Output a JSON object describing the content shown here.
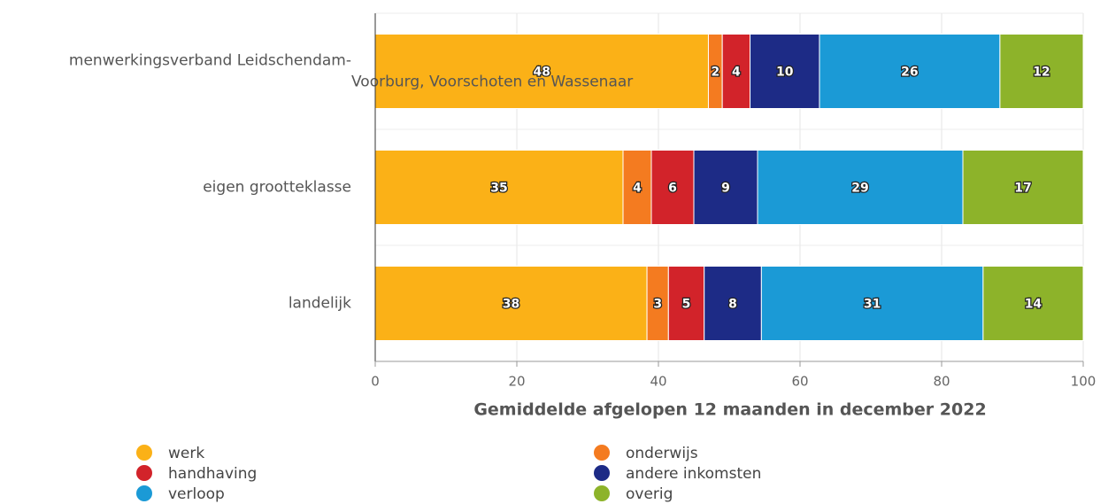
{
  "chart_data": {
    "type": "bar",
    "orientation": "horizontal",
    "stacking": "percent",
    "categories": [
      "menwerkingsverband Leidschendam-Voorburg, Voorschoten en Wassenaar",
      "eigen grootteklasse",
      "landelijk"
    ],
    "series": [
      {
        "name": "werk",
        "color": "#fbb117",
        "values": [
          48,
          35,
          38
        ]
      },
      {
        "name": "onderwijs",
        "color": "#f47b20",
        "values": [
          2,
          4,
          3
        ]
      },
      {
        "name": "handhaving",
        "color": "#d2232a",
        "values": [
          4,
          6,
          5
        ]
      },
      {
        "name": "andere inkomsten",
        "color": "#1d2b86",
        "values": [
          10,
          9,
          8
        ]
      },
      {
        "name": "verloop",
        "color": "#1b9ad6",
        "values": [
          26,
          29,
          31
        ]
      },
      {
        "name": "overig",
        "color": "#8db32a",
        "values": [
          12,
          17,
          14
        ]
      }
    ],
    "xlim": [
      0,
      100
    ],
    "xticks": [
      0,
      20,
      40,
      60,
      80,
      100
    ],
    "grid": true,
    "xlabel": "Gemiddelde afgelopen 12 maanden in december 2022",
    "legend": "bottom"
  }
}
